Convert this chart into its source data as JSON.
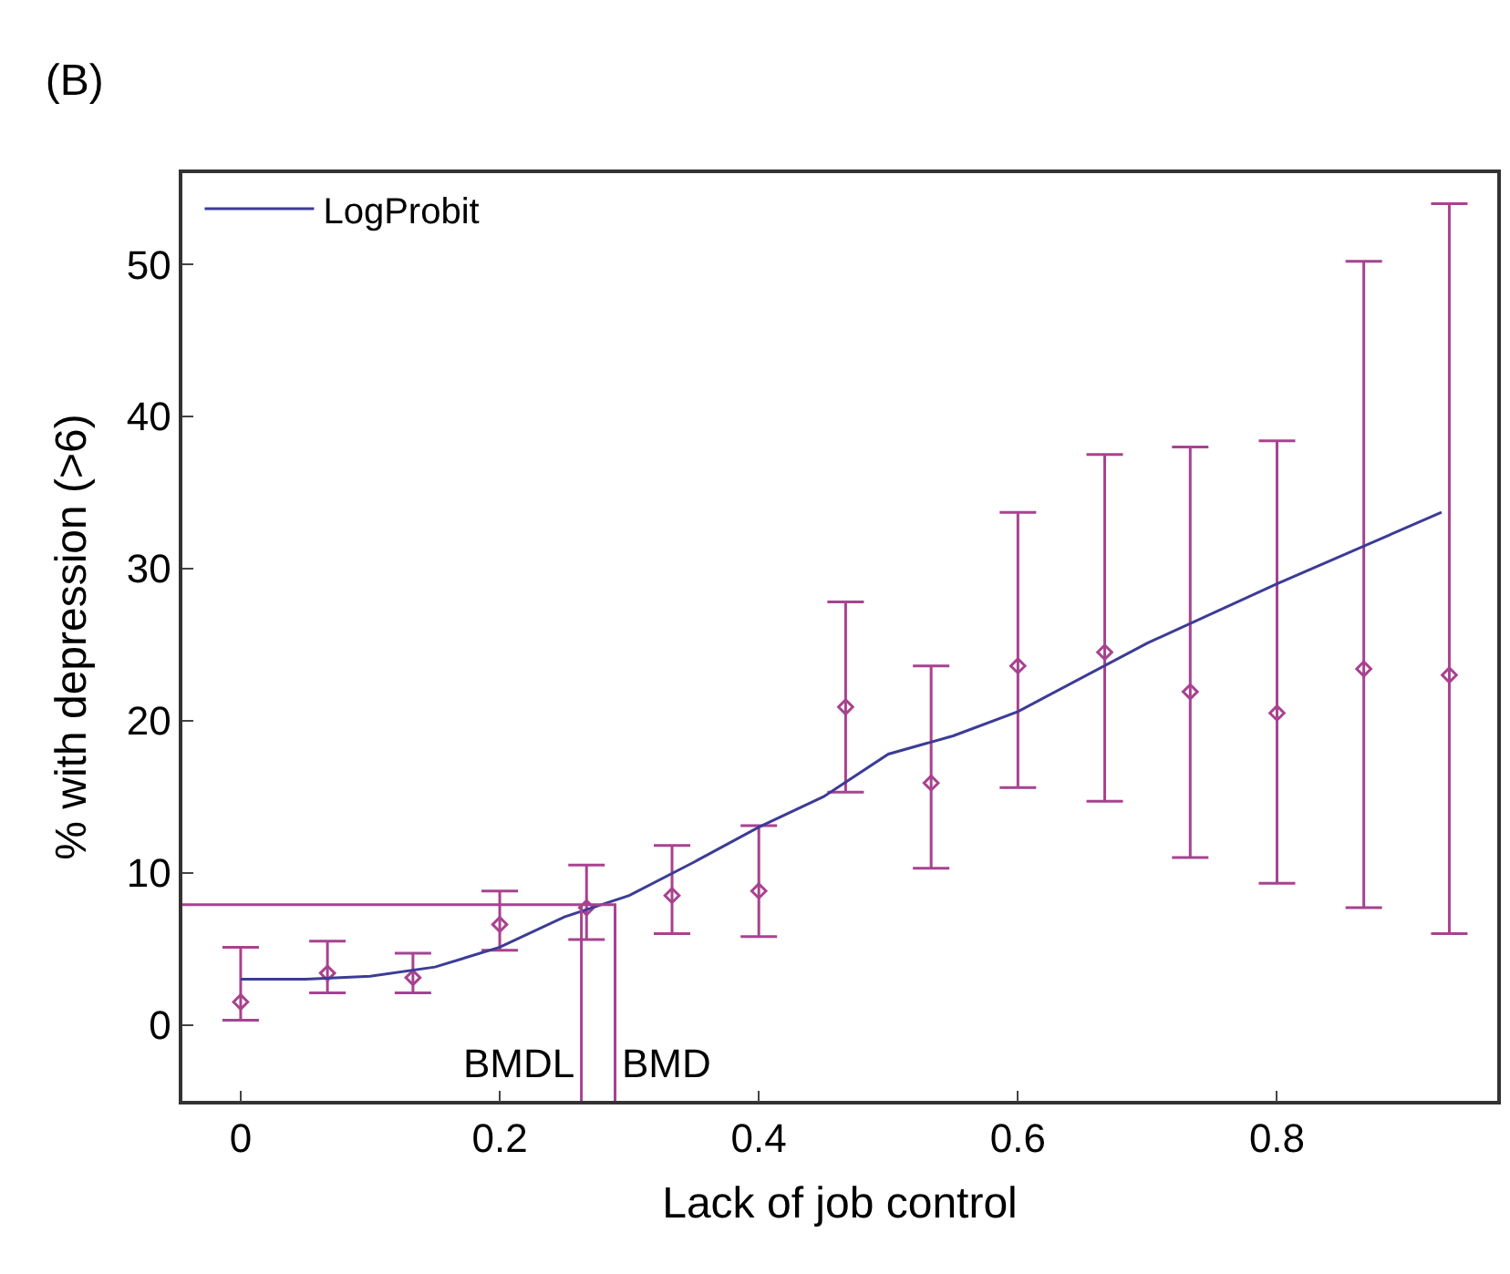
{
  "chart_data": {
    "type": "scatter",
    "title": "(B)",
    "xlabel": "Lack of job control",
    "ylabel": "% with depression (>6)",
    "xlim": [
      -0.045,
      0.97
    ],
    "ylim": [
      -5,
      56
    ],
    "xticks": [
      0,
      0.2,
      0.4,
      0.6,
      0.8
    ],
    "yticks": [
      0,
      10,
      20,
      30,
      40,
      50
    ],
    "legend": "top left",
    "series": [
      {
        "color": "#a8428f",
        "marker": "diamond",
        "x": [
          0,
          0.067,
          0.133,
          0.2,
          0.267,
          0.333,
          0.4,
          0.467,
          0.533,
          0.6,
          0.667,
          0.733,
          0.8,
          0.867,
          0.933
        ],
        "values": [
          1.5,
          3.4,
          3.1,
          6.6,
          7.7,
          8.5,
          8.8,
          20.9,
          15.9,
          23.6,
          24.5,
          21.9,
          20.5,
          23.4,
          23.0
        ],
        "errors": [
          [
            0.3,
            5.1
          ],
          [
            2.1,
            5.5
          ],
          [
            2.1,
            4.7
          ],
          [
            4.9,
            8.8
          ],
          [
            5.6,
            10.5
          ],
          [
            6.0,
            11.8
          ],
          [
            5.8,
            13.1
          ],
          [
            15.3,
            27.8
          ],
          [
            10.3,
            23.6
          ],
          [
            15.6,
            33.7
          ],
          [
            14.7,
            37.5
          ],
          [
            11.0,
            38.0
          ],
          [
            9.3,
            38.4
          ],
          [
            7.7,
            50.2
          ],
          [
            6.0,
            54.0
          ]
        ]
      },
      {
        "type": "line",
        "name": "LogProbit",
        "color": "#3c3c96",
        "x": [
          0,
          0.05,
          0.1,
          0.15,
          0.2,
          0.25,
          0.3,
          0.35,
          0.4,
          0.45,
          0.5,
          0.55,
          0.6,
          0.7,
          0.8,
          0.927
        ],
        "values": [
          3.0,
          3.0,
          3.2,
          3.8,
          5.1,
          7.1,
          8.5,
          10.7,
          13.0,
          15.0,
          17.8,
          19.0,
          20.6,
          25.1,
          29.0,
          33.7
        ]
      },
      {
        "type": "line",
        "color": "#a8428f",
        "x": [
          -0.045,
          0.289,
          0.289
        ],
        "values": [
          7.9,
          7.9,
          -5
        ]
      },
      {
        "type": "line",
        "color": "#a8428f",
        "x": [
          0.263,
          0.263
        ],
        "values": [
          7.9,
          -5
        ]
      }
    ],
    "annotations": [
      {
        "text": "BMDL",
        "x": 0.263,
        "y": -2.6
      },
      {
        "text": "BMD",
        "x": 0.289,
        "y": -2.6
      }
    ]
  }
}
